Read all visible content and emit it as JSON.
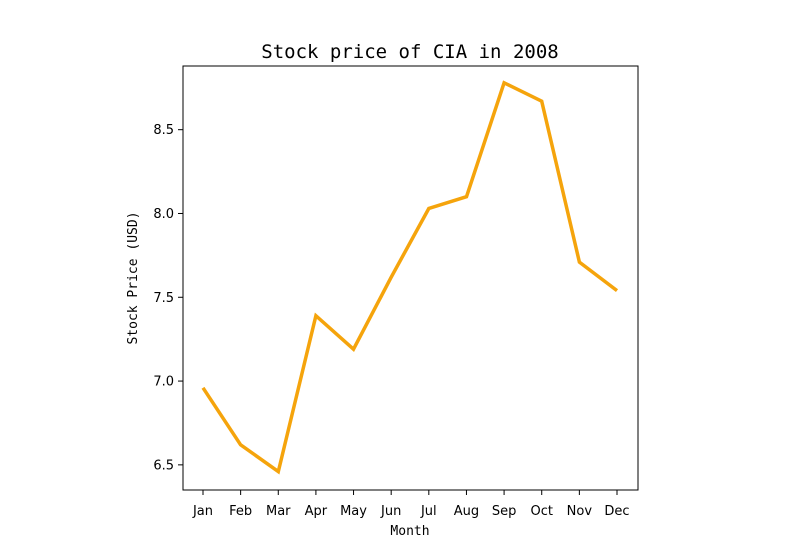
{
  "chart_data": {
    "type": "line",
    "title": "Stock price of CIA in 2008",
    "xlabel": "Month",
    "ylabel": "Stock Price (USD)",
    "categories": [
      "Jan",
      "Feb",
      "Mar",
      "Apr",
      "May",
      "Jun",
      "Jul",
      "Aug",
      "Sep",
      "Oct",
      "Nov",
      "Dec"
    ],
    "values": [
      6.96,
      6.62,
      6.46,
      7.39,
      7.19,
      7.62,
      8.03,
      8.1,
      8.78,
      8.67,
      7.71,
      7.54
    ],
    "ylim": [
      6.35,
      8.88
    ],
    "yticks": [
      6.5,
      7.0,
      7.5,
      8.0,
      8.5
    ],
    "ytick_labels": [
      "6.5",
      "7.0",
      "7.5",
      "8.0",
      "8.5"
    ],
    "grid": false,
    "line_color": "#f5a40c"
  }
}
